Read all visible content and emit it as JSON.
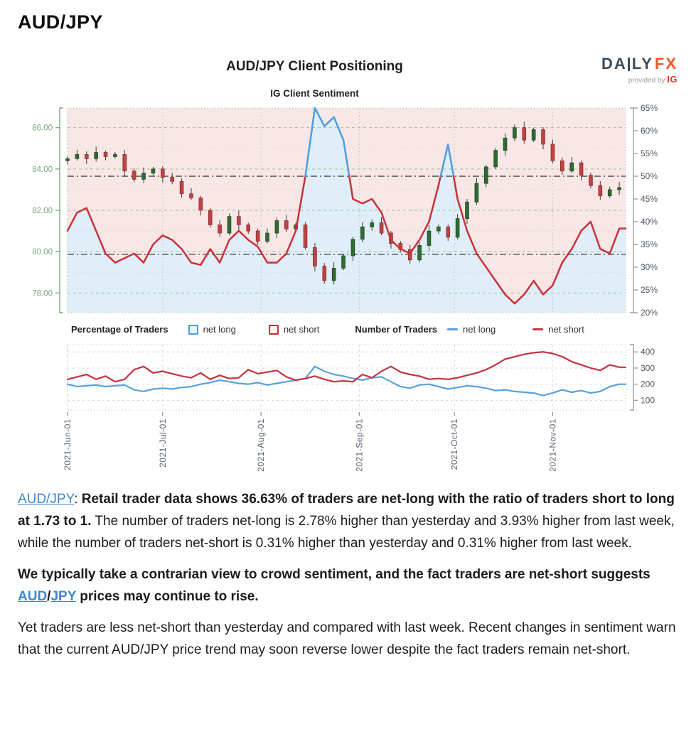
{
  "page": {
    "title": "AUD/JPY"
  },
  "chart": {
    "title": "AUD/JPY Client Positioning",
    "subtitle": "IG Client Sentiment",
    "logo": {
      "brand_left": "DA",
      "brand_right": "LY",
      "brand_accent": "FX",
      "provided": "provided by",
      "ig": "IG"
    },
    "legend": {
      "pct_group": "Percentage of Traders",
      "pct_long": "net long",
      "pct_short": "net short",
      "num_group": "Number of Traders",
      "num_long": "net long",
      "num_short": "net short"
    }
  },
  "chart_data": {
    "type": "mixed",
    "title": "AUD/JPY Client Positioning",
    "subtitle": "IG Client Sentiment",
    "x_axis": {
      "unit": "days since 2021-06-01, one sample every 3 days",
      "domain": [
        0,
        176
      ],
      "step": 3,
      "month_days": [
        0,
        30,
        61,
        92,
        122,
        153
      ],
      "month_labels": [
        "2021-Jun-01",
        "2021-Jul-01",
        "2021-Aug-01",
        "2021-Sep-01",
        "2021-Oct-01",
        "2021-Nov-01"
      ]
    },
    "main_chart": {
      "price": {
        "name": "AUD/JPY price (candlesticks)",
        "tick_values": [
          86,
          84,
          82,
          80,
          78
        ],
        "tick_labels": [
          "86.00",
          "84.00",
          "82.00",
          "80.00",
          "78.00"
        ],
        "minor_ticks": [
          85,
          83,
          81,
          79
        ],
        "view": [
          77.05,
          86.95
        ],
        "first_open": 84.4,
        "closes": [
          84.5,
          84.7,
          84.5,
          84.8,
          84.6,
          84.7,
          83.9,
          83.5,
          83.8,
          84.0,
          83.6,
          83.4,
          82.8,
          82.6,
          82.0,
          81.3,
          80.9,
          81.7,
          81.3,
          81.0,
          80.5,
          80.9,
          81.5,
          81.1,
          81.3,
          80.2,
          79.3,
          78.6,
          79.2,
          79.8,
          80.6,
          81.2,
          81.4,
          80.9,
          80.4,
          80.1,
          79.6,
          80.3,
          81.0,
          81.2,
          80.7,
          81.6,
          82.4,
          83.3,
          84.1,
          84.9,
          85.5,
          86.0,
          85.4,
          85.9,
          85.2,
          84.4,
          83.9,
          84.3,
          83.7,
          83.2,
          82.7,
          83.0,
          83.1
        ]
      },
      "pct": {
        "name": "percent of traders net-long (blue above 50%, red below)",
        "tick_values": [
          65,
          60,
          55,
          50,
          45,
          40,
          35,
          30,
          25,
          20
        ],
        "tick_labels": [
          "65%",
          "60%",
          "55%",
          "50%",
          "45%",
          "40%",
          "35%",
          "30%",
          "25%",
          "20%"
        ],
        "view": [
          20,
          65
        ],
        "threshold": 50,
        "values": [
          38,
          42,
          43,
          38,
          33,
          31,
          32,
          33,
          31,
          35,
          37,
          36,
          34,
          31,
          30.5,
          34,
          31,
          36,
          38,
          36,
          34.5,
          31,
          31,
          33,
          38,
          50,
          65,
          61,
          63,
          58,
          45,
          44,
          45,
          42,
          36,
          34,
          33,
          36,
          40,
          48,
          57,
          45,
          38,
          33,
          30,
          27,
          24,
          22,
          24,
          27,
          24,
          26,
          31,
          34,
          38,
          40,
          34,
          33,
          38.5
        ]
      },
      "reference_lines": {
        "pct": 50,
        "price": 79.87
      },
      "colors": {
        "long_fill": "#dfeef8",
        "short_fill": "#f9e6e6",
        "line_long": "#4d9de0",
        "line_short": "#c9313a",
        "candle_up": "#2f6b33",
        "candle_up_stroke": "#1f4a22",
        "candle_down": "#c24343",
        "candle_down_stroke": "#8e2c2c",
        "wick": "#3a3a3a",
        "grid_major": "#96c696",
        "grid_minor": "#cde4cd",
        "grid_vertical": "#bcd4bc",
        "border": "#a6c6a6",
        "axis_left": "#7ba87b",
        "label_left": "#78a878",
        "axis_right": "#9aa0a6",
        "label_right": "#4f565e",
        "ref_line": "#4d4d4d"
      }
    },
    "lower_chart": {
      "name": "Number of Traders",
      "tick_values": [
        400,
        300,
        200,
        100
      ],
      "tick_labels": [
        "400",
        "300",
        "200",
        "100"
      ],
      "view": [
        40,
        445
      ],
      "series": [
        {
          "name": "net long",
          "color": "#58a1dd",
          "values": [
            200,
            185,
            190,
            195,
            185,
            190,
            195,
            165,
            155,
            170,
            175,
            170,
            180,
            185,
            200,
            210,
            225,
            215,
            205,
            200,
            210,
            195,
            205,
            215,
            225,
            235,
            310,
            280,
            260,
            250,
            235,
            225,
            240,
            245,
            215,
            185,
            175,
            195,
            200,
            185,
            170,
            180,
            190,
            185,
            175,
            160,
            165,
            155,
            150,
            145,
            130,
            145,
            165,
            150,
            160,
            145,
            155,
            185,
            200
          ]
        },
        {
          "name": "net short",
          "color": "#c4333e",
          "values": [
            230,
            245,
            260,
            230,
            250,
            215,
            230,
            290,
            310,
            270,
            280,
            265,
            250,
            240,
            270,
            230,
            255,
            235,
            240,
            290,
            265,
            275,
            285,
            245,
            225,
            235,
            250,
            230,
            215,
            220,
            215,
            260,
            240,
            280,
            310,
            275,
            260,
            250,
            230,
            235,
            230,
            240,
            255,
            270,
            290,
            320,
            355,
            370,
            385,
            395,
            400,
            390,
            370,
            340,
            320,
            300,
            285,
            320,
            305
          ]
        }
      ],
      "colors": {
        "grid": "#d4d4d4",
        "border": "#c6c6c6",
        "axis": "#9aa0a6",
        "label": "#4f565e",
        "tick": "#8a8a8a",
        "date_label": "#596470"
      }
    }
  },
  "article": {
    "paragraphs": [
      {
        "name": "summary-paragraph",
        "segments": [
          {
            "text": "AUD/JPY",
            "link": true
          },
          {
            "text": ": "
          },
          {
            "text": "Retail trader data shows 36.63% of traders are net-long with the ratio of traders short to long at 1.73 to 1.",
            "bold": true
          },
          {
            "text": " The number of traders net-long is 2.78% higher than yesterday and 3.93% higher from last week, while the number of traders net-short is 0.31% higher than yesterday and 0.31% higher from last week."
          }
        ]
      },
      {
        "name": "contrarian-paragraph",
        "segments": [
          {
            "text": "We typically take a contrarian view to crowd sentiment, and the fact traders are net-short suggests ",
            "bold": true
          },
          {
            "text": "AUD",
            "bold": true,
            "link": true
          },
          {
            "text": "/",
            "bold": true
          },
          {
            "text": "JPY",
            "bold": true,
            "link": true
          },
          {
            "text": " prices may continue to rise.",
            "bold": true
          }
        ]
      },
      {
        "name": "outlook-paragraph",
        "segments": [
          {
            "text": "Yet traders are less net-short than yesterday and compared with last week. Recent changes in sentiment warn that the current AUD/JPY price trend may soon reverse lower despite the fact traders remain net-short."
          }
        ]
      }
    ]
  }
}
